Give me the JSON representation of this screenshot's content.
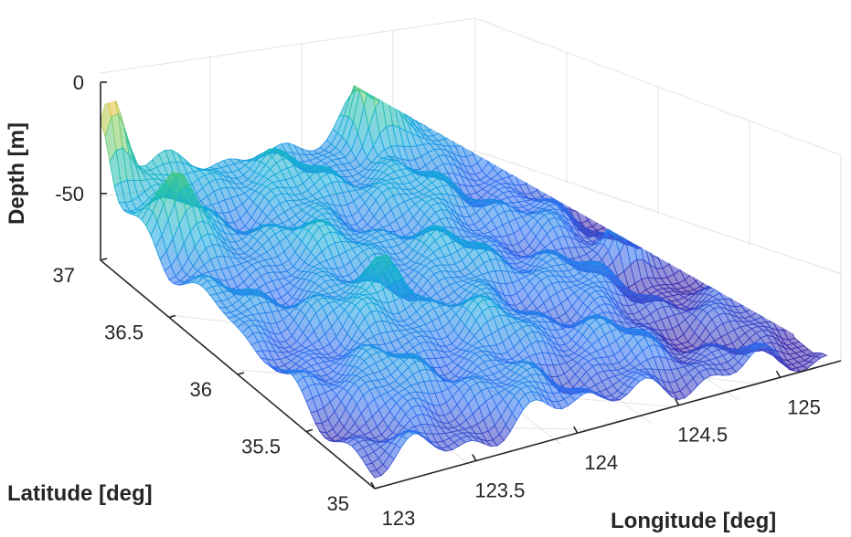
{
  "chart_data": {
    "type": "surface",
    "colormap": "parula",
    "grid": true,
    "xlabel": "Longitude [deg]",
    "ylabel": "Latitude [deg]",
    "zlabel": "Depth [m]",
    "xlim": [
      123,
      125.3
    ],
    "ylim": [
      35,
      37
    ],
    "zlim": [
      -80,
      0
    ],
    "x_ticks": [
      "123",
      "123.5",
      "124",
      "124.5",
      "125"
    ],
    "y_ticks": [
      "35",
      "35.5",
      "36",
      "36.5",
      "37"
    ],
    "z_ticks": [
      "0",
      "-50"
    ],
    "x": [
      123.0,
      123.5,
      124.0,
      124.5,
      125.0
    ],
    "y": [
      35.0,
      35.5,
      36.0,
      36.5,
      37.0
    ],
    "z": [
      [
        -72,
        -68,
        -66,
        -69,
        -74
      ],
      [
        -66,
        -57,
        -58,
        -64,
        -76
      ],
      [
        -62,
        -56,
        -55,
        -60,
        -78
      ],
      [
        -58,
        -54,
        -52,
        -58,
        -70
      ],
      [
        -40,
        -50,
        -52,
        -48,
        -58
      ]
    ],
    "peaks": [
      {
        "x": 124.3,
        "y": 36.9,
        "z": -14
      },
      {
        "x": 123.05,
        "y": 37.0,
        "z": -2
      },
      {
        "x": 123.15,
        "y": 36.65,
        "z": -30
      },
      {
        "x": 124.95,
        "y": 35.95,
        "z": -42
      },
      {
        "x": 123.7,
        "y": 35.9,
        "z": -38
      }
    ]
  }
}
